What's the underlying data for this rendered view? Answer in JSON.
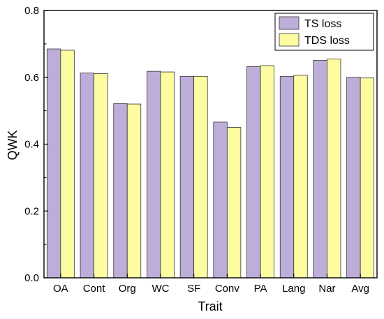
{
  "chart_data": {
    "type": "bar",
    "title": "",
    "xlabel": "Trait",
    "ylabel": "QWK",
    "ylim": [
      0,
      0.8
    ],
    "yticks": [
      "0.0",
      "0.2",
      "0.4",
      "0.6",
      "0.8"
    ],
    "ytick_values": [
      0,
      0.2,
      0.4,
      0.6,
      0.8
    ],
    "categories": [
      "OA",
      "Cont",
      "Org",
      "WC",
      "SF",
      "Conv",
      "PA",
      "Lang",
      "Nar",
      "Avg"
    ],
    "series": [
      {
        "name": "TS loss",
        "color": "#bcaed8",
        "values": [
          0.685,
          0.613,
          0.521,
          0.618,
          0.603,
          0.466,
          0.632,
          0.603,
          0.651,
          0.6
        ]
      },
      {
        "name": "TDS loss",
        "color": "#fdfca0",
        "values": [
          0.681,
          0.611,
          0.52,
          0.616,
          0.603,
          0.45,
          0.635,
          0.606,
          0.655,
          0.598
        ]
      }
    ],
    "grid": false,
    "legend_position": "top-right"
  }
}
